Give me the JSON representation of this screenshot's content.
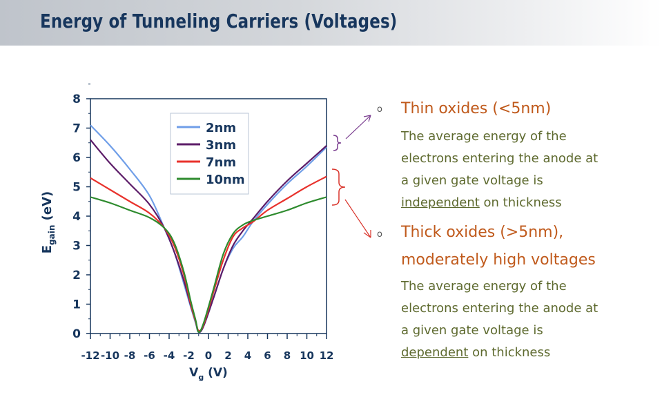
{
  "slide": {
    "title": "Energy of Tunneling Carriers (Voltages)"
  },
  "bullets": [
    {
      "heading_line1": "Thin oxides (<5nm)",
      "heading_line2": "",
      "marker": "o",
      "text_line1": "The average energy of the",
      "text_line2": "electrons entering the anode at",
      "text_line3": "a given gate voltage is",
      "text_line4_emph": "independent",
      "text_line4_rest": " on thickness"
    },
    {
      "heading_line1": "Thick oxides (>5nm),",
      "heading_line2": "moderately high voltages",
      "marker": "o",
      "text_line1": "The average energy of the",
      "text_line2": "electrons entering the anode at",
      "text_line3": "a given gate voltage is",
      "text_line4_emph": "dependent",
      "text_line4_rest": " on thickness"
    }
  ],
  "colors": {
    "title": "#17365d",
    "heading": "#c05a1c",
    "body": "#5e6a2f",
    "axis_text": "#17365d",
    "bracket_thin": "#7a3d8f",
    "bracket_thick": "#d9342b"
  },
  "chart_data": {
    "type": "line",
    "xlabel": "V",
    "xlabel_sub": "g",
    "xlabel_unit": " (V)",
    "ylabel": "E",
    "ylabel_sub": "gain",
    "ylabel_unit": " (eV)",
    "xlim": [
      -12,
      12
    ],
    "ylim": [
      0,
      8
    ],
    "xticks": [
      -12,
      -10,
      -8,
      -6,
      -4,
      -2,
      0,
      2,
      4,
      6,
      8,
      10,
      12
    ],
    "yticks": [
      0,
      1,
      2,
      3,
      4,
      5,
      6,
      7,
      8
    ],
    "legend_position": "top-right",
    "series": [
      {
        "name": "2nm",
        "color": "#6f9ee8",
        "x": [
          -12,
          -10,
          -8,
          -6,
          -4.5,
          -3.5,
          -2.5,
          -1.8,
          -1.3,
          -1.0,
          -0.5,
          0.5,
          1.5,
          2.5,
          3.5,
          4.5,
          6,
          8,
          10,
          12
        ],
        "y": [
          7.1,
          6.4,
          5.6,
          4.7,
          3.6,
          2.8,
          1.7,
          0.9,
          0.35,
          0.05,
          0.25,
          1.2,
          2.2,
          2.9,
          3.3,
          3.8,
          4.4,
          5.1,
          5.7,
          6.35
        ]
      },
      {
        "name": "3nm",
        "color": "#5c1c68",
        "x": [
          -12,
          -10,
          -8,
          -6,
          -4.5,
          -3.5,
          -2.5,
          -1.8,
          -1.3,
          -1.0,
          -0.5,
          0.5,
          1.5,
          2.5,
          3.5,
          4.5,
          6,
          8,
          10,
          12
        ],
        "y": [
          6.6,
          5.8,
          5.1,
          4.4,
          3.6,
          2.8,
          1.8,
          0.95,
          0.4,
          0.05,
          0.25,
          1.2,
          2.2,
          3.0,
          3.5,
          3.9,
          4.5,
          5.2,
          5.8,
          6.4
        ]
      },
      {
        "name": "7nm",
        "color": "#e8322c",
        "x": [
          -12,
          -10,
          -8,
          -6,
          -4.5,
          -3.5,
          -2.5,
          -1.8,
          -1.3,
          -1.0,
          -0.5,
          0.5,
          1.5,
          2.5,
          3.5,
          4.5,
          6,
          8,
          10,
          12
        ],
        "y": [
          5.3,
          4.9,
          4.5,
          4.1,
          3.6,
          3.0,
          2.0,
          1.0,
          0.4,
          0.1,
          0.3,
          1.4,
          2.5,
          3.3,
          3.6,
          3.8,
          4.2,
          4.6,
          5.0,
          5.35
        ]
      },
      {
        "name": "10nm",
        "color": "#2e8b2e",
        "x": [
          -12,
          -10,
          -8,
          -6,
          -4.5,
          -3.5,
          -2.5,
          -1.8,
          -1.3,
          -1.0,
          -0.5,
          0.5,
          1.5,
          2.5,
          3.5,
          4.5,
          6,
          8,
          10,
          12
        ],
        "y": [
          4.65,
          4.45,
          4.2,
          3.95,
          3.6,
          3.1,
          2.1,
          1.1,
          0.45,
          0.05,
          0.35,
          1.5,
          2.7,
          3.4,
          3.7,
          3.85,
          4.0,
          4.2,
          4.45,
          4.65
        ]
      }
    ]
  }
}
